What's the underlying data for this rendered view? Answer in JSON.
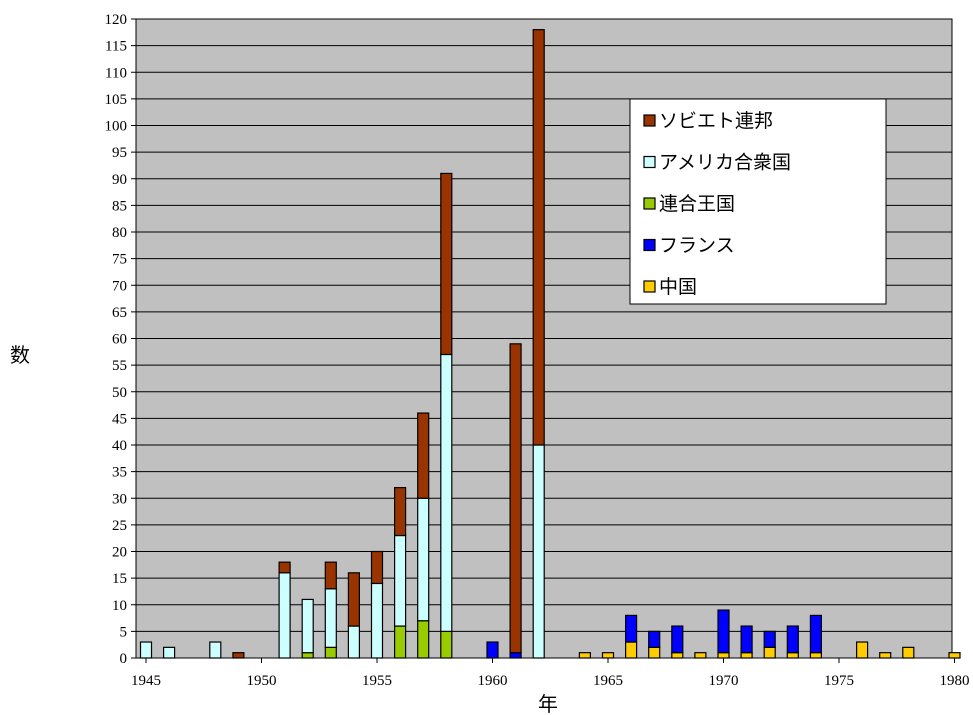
{
  "chart_data": {
    "type": "bar",
    "stacked": true,
    "xlabel": "年",
    "ylabel": "数",
    "ylim": [
      0,
      120
    ],
    "yticks": [
      0,
      5,
      10,
      15,
      20,
      25,
      30,
      35,
      40,
      45,
      50,
      55,
      60,
      65,
      70,
      75,
      80,
      85,
      90,
      95,
      100,
      105,
      110,
      115,
      120
    ],
    "xlim": [
      1945,
      1980
    ],
    "xticks": [
      1945,
      1950,
      1955,
      1960,
      1965,
      1970,
      1975,
      1980
    ],
    "grid": true,
    "legend_position": "top-right",
    "x": [
      1945,
      1946,
      1947,
      1948,
      1949,
      1950,
      1951,
      1952,
      1953,
      1954,
      1955,
      1956,
      1957,
      1958,
      1959,
      1960,
      1961,
      1962,
      1963,
      1964,
      1965,
      1966,
      1967,
      1968,
      1969,
      1970,
      1971,
      1972,
      1973,
      1974,
      1975,
      1976,
      1977,
      1978,
      1979,
      1980
    ],
    "series": [
      {
        "name": "中国",
        "color": "#ffcc00",
        "values": [
          0,
          0,
          0,
          0,
          0,
          0,
          0,
          0,
          0,
          0,
          0,
          0,
          0,
          0,
          0,
          0,
          0,
          0,
          0,
          1,
          1,
          3,
          2,
          1,
          1,
          1,
          1,
          2,
          1,
          1,
          0,
          3,
          1,
          2,
          0,
          1
        ]
      },
      {
        "name": "フランス",
        "color": "#0000ff",
        "values": [
          0,
          0,
          0,
          0,
          0,
          0,
          0,
          0,
          0,
          0,
          0,
          0,
          0,
          0,
          0,
          3,
          1,
          0,
          0,
          0,
          0,
          5,
          3,
          5,
          0,
          8,
          5,
          3,
          5,
          7,
          0,
          0,
          0,
          0,
          0,
          0
        ]
      },
      {
        "name": "連合王国",
        "color": "#99cc00",
        "values": [
          0,
          0,
          0,
          0,
          0,
          0,
          0,
          1,
          2,
          0,
          0,
          6,
          7,
          5,
          0,
          0,
          0,
          0,
          0,
          0,
          0,
          0,
          0,
          0,
          0,
          0,
          0,
          0,
          0,
          0,
          0,
          0,
          0,
          0,
          0,
          0
        ]
      },
      {
        "name": "アメリカ合衆国",
        "color": "#ccffff",
        "values": [
          3,
          2,
          0,
          3,
          0,
          0,
          16,
          10,
          11,
          6,
          14,
          17,
          23,
          52,
          0,
          0,
          0,
          40,
          0,
          0,
          0,
          0,
          0,
          0,
          0,
          0,
          0,
          0,
          0,
          0,
          0,
          0,
          0,
          0,
          0,
          0
        ]
      },
      {
        "name": "ソビエト連邦",
        "color": "#993300",
        "values": [
          0,
          0,
          0,
          0,
          1,
          0,
          2,
          0,
          5,
          10,
          6,
          9,
          16,
          34,
          0,
          0,
          58,
          78,
          0,
          0,
          0,
          0,
          0,
          0,
          0,
          0,
          0,
          0,
          0,
          0,
          0,
          0,
          0,
          0,
          0,
          0
        ]
      }
    ],
    "legend_order": [
      "ソビエト連邦",
      "アメリカ合衆国",
      "連合王国",
      "フランス",
      "中国"
    ]
  }
}
